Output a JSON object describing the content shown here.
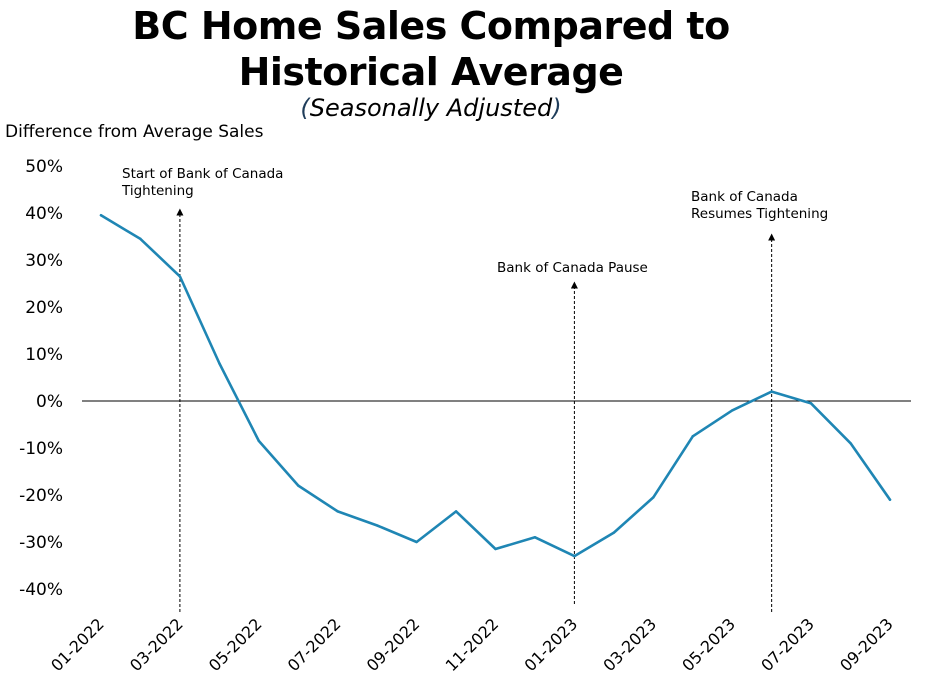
{
  "header": {
    "title_line1": "BC Home Sales Compared to",
    "title_line2": "Historical Average",
    "subtitle": "Seasonally Adjusted"
  },
  "chart_data": {
    "type": "line",
    "title": "BC Home Sales Compared to Historical Average",
    "subtitle": "(Seasonally Adjusted)",
    "ylabel": "Difference from Average Sales",
    "xlabel": "",
    "ylim": [
      -40,
      50
    ],
    "yticks": [
      "50%",
      "40%",
      "30%",
      "20%",
      "10%",
      "0%",
      "-10%",
      "-20%",
      "-30%",
      "-40%"
    ],
    "ytick_values": [
      50,
      40,
      30,
      20,
      10,
      0,
      -10,
      -20,
      -30,
      -40
    ],
    "x": [
      "01-2022",
      "02-2022",
      "03-2022",
      "04-2022",
      "05-2022",
      "06-2022",
      "07-2022",
      "08-2022",
      "09-2022",
      "10-2022",
      "11-2022",
      "12-2022",
      "01-2023",
      "02-2023",
      "03-2023",
      "04-2023",
      "05-2023",
      "06-2023",
      "07-2023",
      "08-2023",
      "09-2023"
    ],
    "xtick_labels": [
      "01-2022",
      "03-2022",
      "05-2022",
      "07-2022",
      "09-2022",
      "11-2022",
      "01-2023",
      "03-2023",
      "05-2023",
      "07-2023",
      "09-2023"
    ],
    "series": [
      {
        "name": "",
        "color": "#1f86b4",
        "values": [
          39.5,
          34.5,
          26.5,
          8,
          -8.5,
          -18,
          -23.5,
          -26.5,
          -30,
          -23.5,
          -31.5,
          -29,
          -33,
          -28,
          -20.5,
          -7.5,
          -2,
          2,
          -0.5,
          -9,
          -21
        ]
      }
    ],
    "grid": false,
    "zero_line": true,
    "annotations": [
      {
        "text_lines": [
          "Start of Bank of Canada",
          "Tightening"
        ],
        "x": "03-2022"
      },
      {
        "text_lines": [
          "Bank of Canada Pause"
        ],
        "x": "01-2023"
      },
      {
        "text_lines": [
          "Bank of Canada",
          "Resumes Tightening"
        ],
        "x": "06-2023"
      }
    ]
  }
}
